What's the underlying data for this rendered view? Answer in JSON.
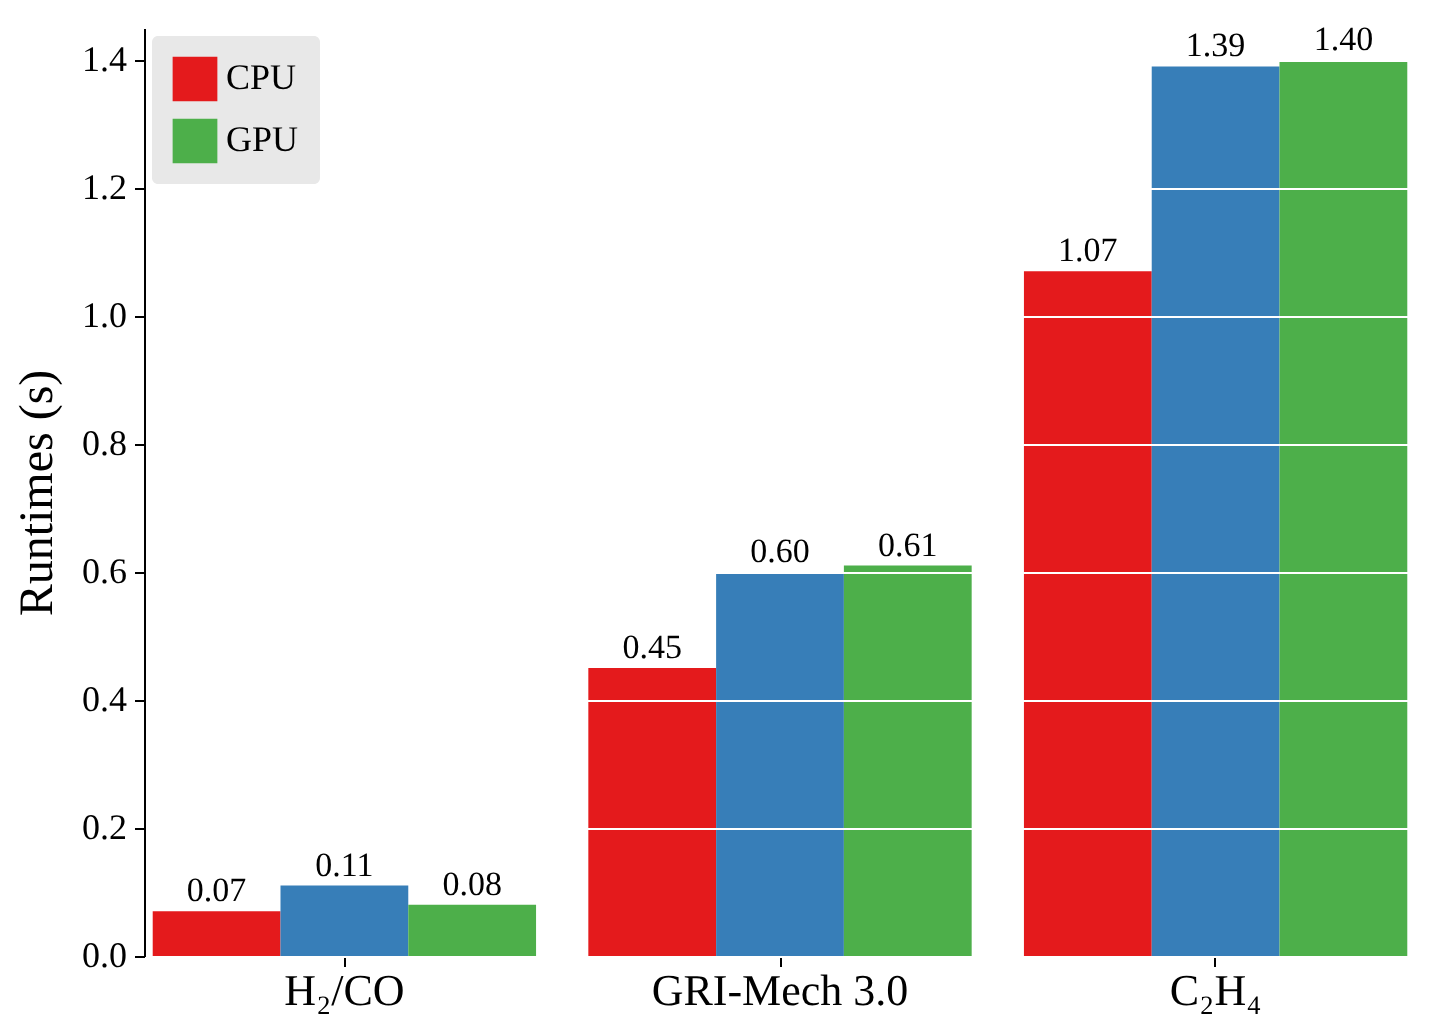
{
  "chart_data": {
    "type": "bar",
    "ylabel": "Runtimes (s)",
    "categories": [
      "H₂/CO",
      "GRI-Mech 3.0",
      "C₂H₄"
    ],
    "series": [
      {
        "name": "CPU",
        "color": "#e41a1c",
        "values": [
          0.07,
          0.45,
          1.07
        ],
        "value_labels": [
          "0.07",
          "0.45",
          "1.07"
        ]
      },
      {
        "color": "#377eb8",
        "values": [
          0.11,
          0.6,
          1.39
        ],
        "value_labels": [
          "0.11",
          "0.60",
          "1.39"
        ]
      },
      {
        "name": "GPU",
        "color": "#4daf4a",
        "values": [
          0.08,
          0.61,
          1.4
        ],
        "value_labels": [
          "0.08",
          "0.61",
          "1.40"
        ]
      }
    ],
    "ylim": [
      0,
      1.45
    ],
    "yticks": [
      {
        "value": 0,
        "label": "0.0"
      },
      0.2,
      0.4,
      0.6,
      0.8,
      {
        "value": 1,
        "label": "1.0"
      },
      1.2,
      1.4
    ],
    "grid": "y",
    "legend": "top left"
  }
}
